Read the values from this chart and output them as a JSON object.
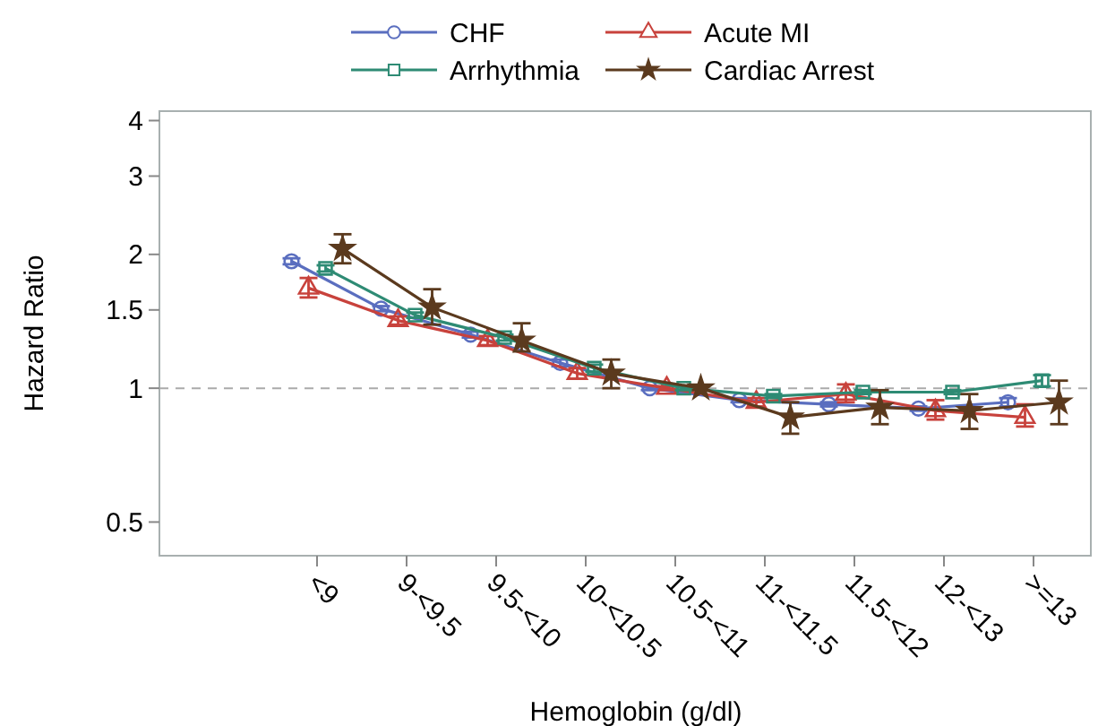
{
  "chart_data": {
    "type": "line",
    "xlabel": "Hemoglobin (g/dl)",
    "ylabel": "Hazard Ratio",
    "log": "y",
    "ylim": [
      0.42,
      4.2
    ],
    "yticks": [
      0.5,
      1,
      1.5,
      2,
      3,
      4
    ],
    "grid": false,
    "legend": "top",
    "categories": [
      "<9",
      "9-<9.5",
      "9.5-<10",
      "10-<10.5",
      "10.5-<11",
      "11-<11.5",
      "11.5-<12",
      "12-<13",
      ">=13"
    ],
    "ref_lines": [
      {
        "axis": "y",
        "value": 1,
        "color": "#aaaaaa",
        "line_style": "dashed"
      }
    ],
    "series": [
      {
        "name": "CHF",
        "color": "#5a6ebf",
        "marker": "circle",
        "values": [
          1.93,
          1.51,
          1.32,
          1.14,
          1.0,
          0.94,
          0.92,
          0.9,
          0.93
        ],
        "errors": [
          0.03,
          0.02,
          0.02,
          0.02,
          0.01,
          0.01,
          0.01,
          0.01,
          0.02
        ]
      },
      {
        "name": "Acute MI",
        "color": "#c8423c",
        "marker": "triangle",
        "values": [
          1.68,
          1.42,
          1.28,
          1.08,
          1.0,
          0.93,
          0.97,
          0.89,
          0.86
        ],
        "errors": [
          [
            1.6,
            1.77
          ],
          0.03,
          0.03,
          0.03,
          0.01,
          0.02,
          [
            0.93,
            1.02
          ],
          [
            0.85,
            0.94
          ],
          [
            0.82,
            0.92
          ]
        ]
      },
      {
        "name": "Arrhythmia",
        "color": "#2e8b74",
        "marker": "square",
        "values": [
          1.86,
          1.46,
          1.3,
          1.11,
          1.0,
          0.96,
          0.98,
          0.98,
          1.04
        ],
        "errors": [
          0.03,
          0.02,
          0.02,
          0.02,
          0.01,
          0.01,
          0.01,
          0.01,
          0.03
        ]
      },
      {
        "name": "Cardiac Arrest",
        "color": "#5b3a1e",
        "marker": "star",
        "values": [
          2.06,
          1.52,
          1.28,
          1.08,
          1.0,
          0.86,
          0.905,
          0.89,
          0.93
        ],
        "errors": [
          [
            1.91,
            2.22
          ],
          [
            1.39,
            1.67
          ],
          [
            1.21,
            1.4
          ],
          [
            1.0,
            1.16
          ],
          0.01,
          [
            0.79,
            0.93
          ],
          [
            0.83,
            0.99
          ],
          [
            0.81,
            0.97
          ],
          [
            0.83,
            1.04
          ]
        ]
      }
    ]
  }
}
